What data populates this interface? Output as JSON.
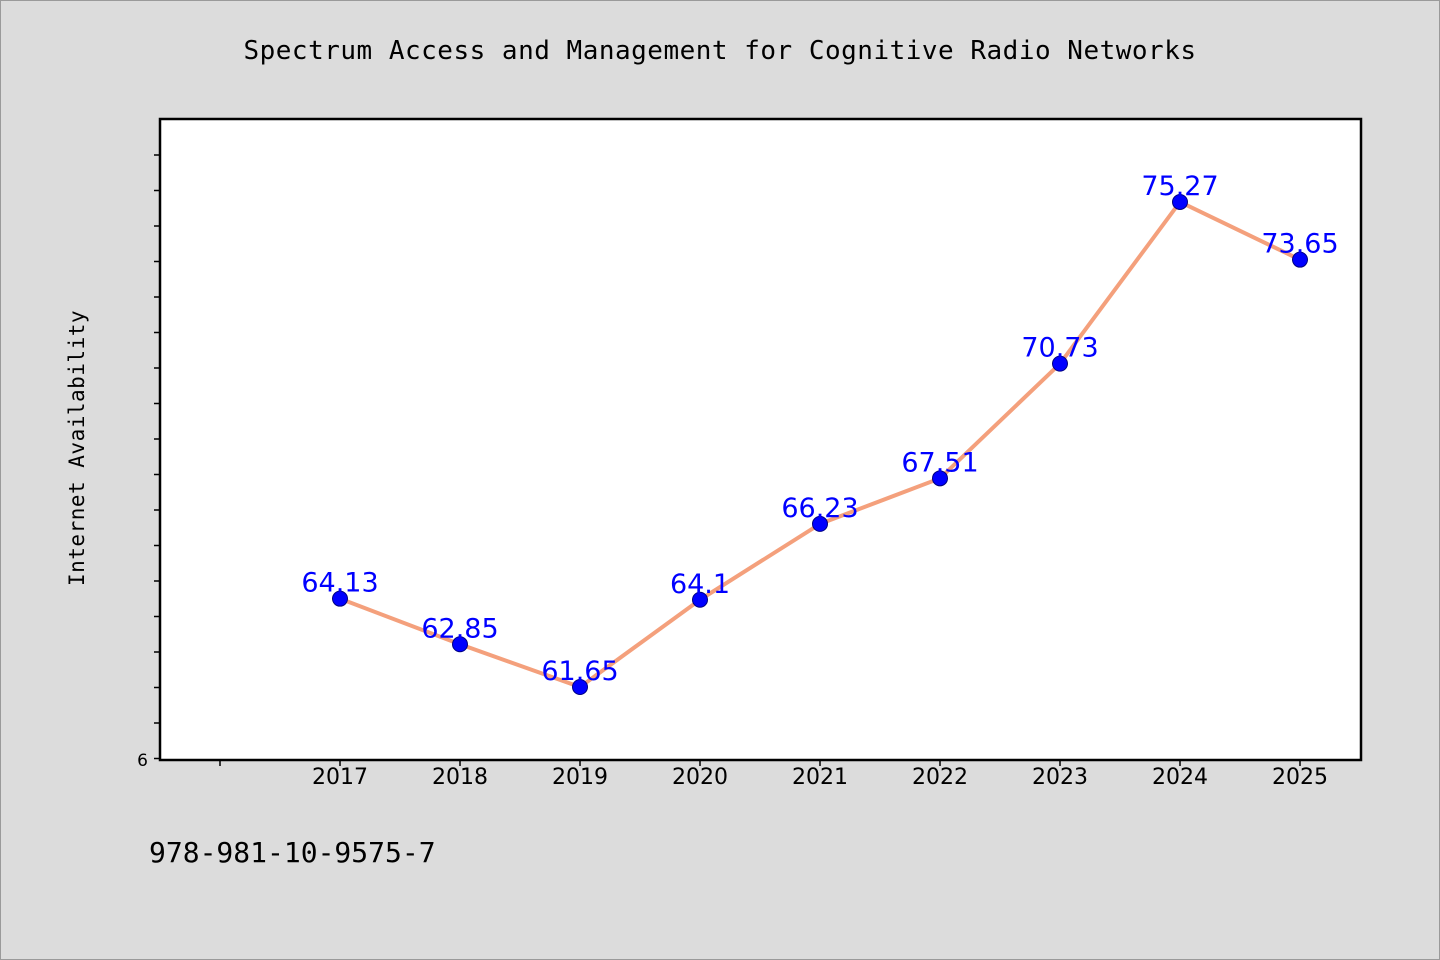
{
  "chart_data": {
    "type": "line",
    "title": "Spectrum Access and Management for Cognitive Radio Networks",
    "xlabel": "",
    "ylabel": "Internet Availability",
    "categories": [
      "2017",
      "2018",
      "2019",
      "2020",
      "2021",
      "2022",
      "2023",
      "2024",
      "2025"
    ],
    "series": [
      {
        "values": [
          64.13,
          62.85,
          61.65,
          64.1,
          66.23,
          67.51,
          70.73,
          75.27,
          73.65
        ],
        "data_labels": [
          "64.13",
          "62.85",
          "61.65",
          "64.1",
          "66.23",
          "67.51",
          "70.73",
          "75.27",
          "73.65"
        ]
      }
    ],
    "ylim": [
      59.6,
      77.6
    ],
    "y_tick_label": "6",
    "grid": false,
    "legend": "none",
    "colors": {
      "line": "#f4a07c",
      "marker": "#0000ff",
      "data_label": "#0000ff",
      "plot_background": "#ffffff",
      "page_background": "#dcdcdc"
    }
  },
  "footer": {
    "isbn": "978-981-10-9575-7"
  }
}
